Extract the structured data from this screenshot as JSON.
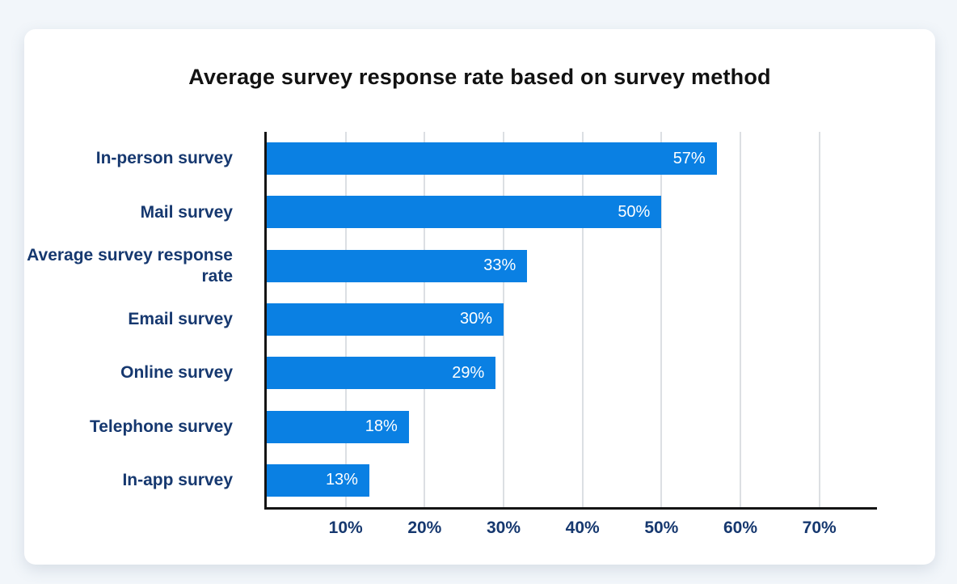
{
  "page": {
    "background_color": "#f2f6fa",
    "card_color": "#ffffff"
  },
  "chart_data": {
    "type": "bar",
    "orientation": "horizontal",
    "title": "Average survey response rate based on survey method",
    "categories": [
      "In-person survey",
      "Mail survey",
      "Average survey response rate",
      "Email survey",
      "Online survey",
      "Telephone survey",
      "In-app survey"
    ],
    "values": [
      57,
      50,
      33,
      30,
      29,
      18,
      13
    ],
    "value_labels": [
      "57%",
      "50%",
      "33%",
      "30%",
      "29%",
      "18%",
      "13%"
    ],
    "x_ticks": [
      {
        "value": 10,
        "label": "10%"
      },
      {
        "value": 20,
        "label": "20%"
      },
      {
        "value": 30,
        "label": "30%"
      },
      {
        "value": 40,
        "label": "40%"
      },
      {
        "value": 50,
        "label": "50%"
      },
      {
        "value": 60,
        "label": "60%"
      },
      {
        "value": 70,
        "label": "70%"
      }
    ],
    "xlim": [
      0,
      77.3
    ],
    "grid": "vertical-only",
    "legend": "none",
    "colors": {
      "bar": "#0a80e3",
      "value_label": "#ffffff",
      "category_label": "#16386f",
      "tick_label": "#16386f",
      "axis": "#141414",
      "gridline": "#dcdfe3",
      "title": "#121212"
    }
  }
}
